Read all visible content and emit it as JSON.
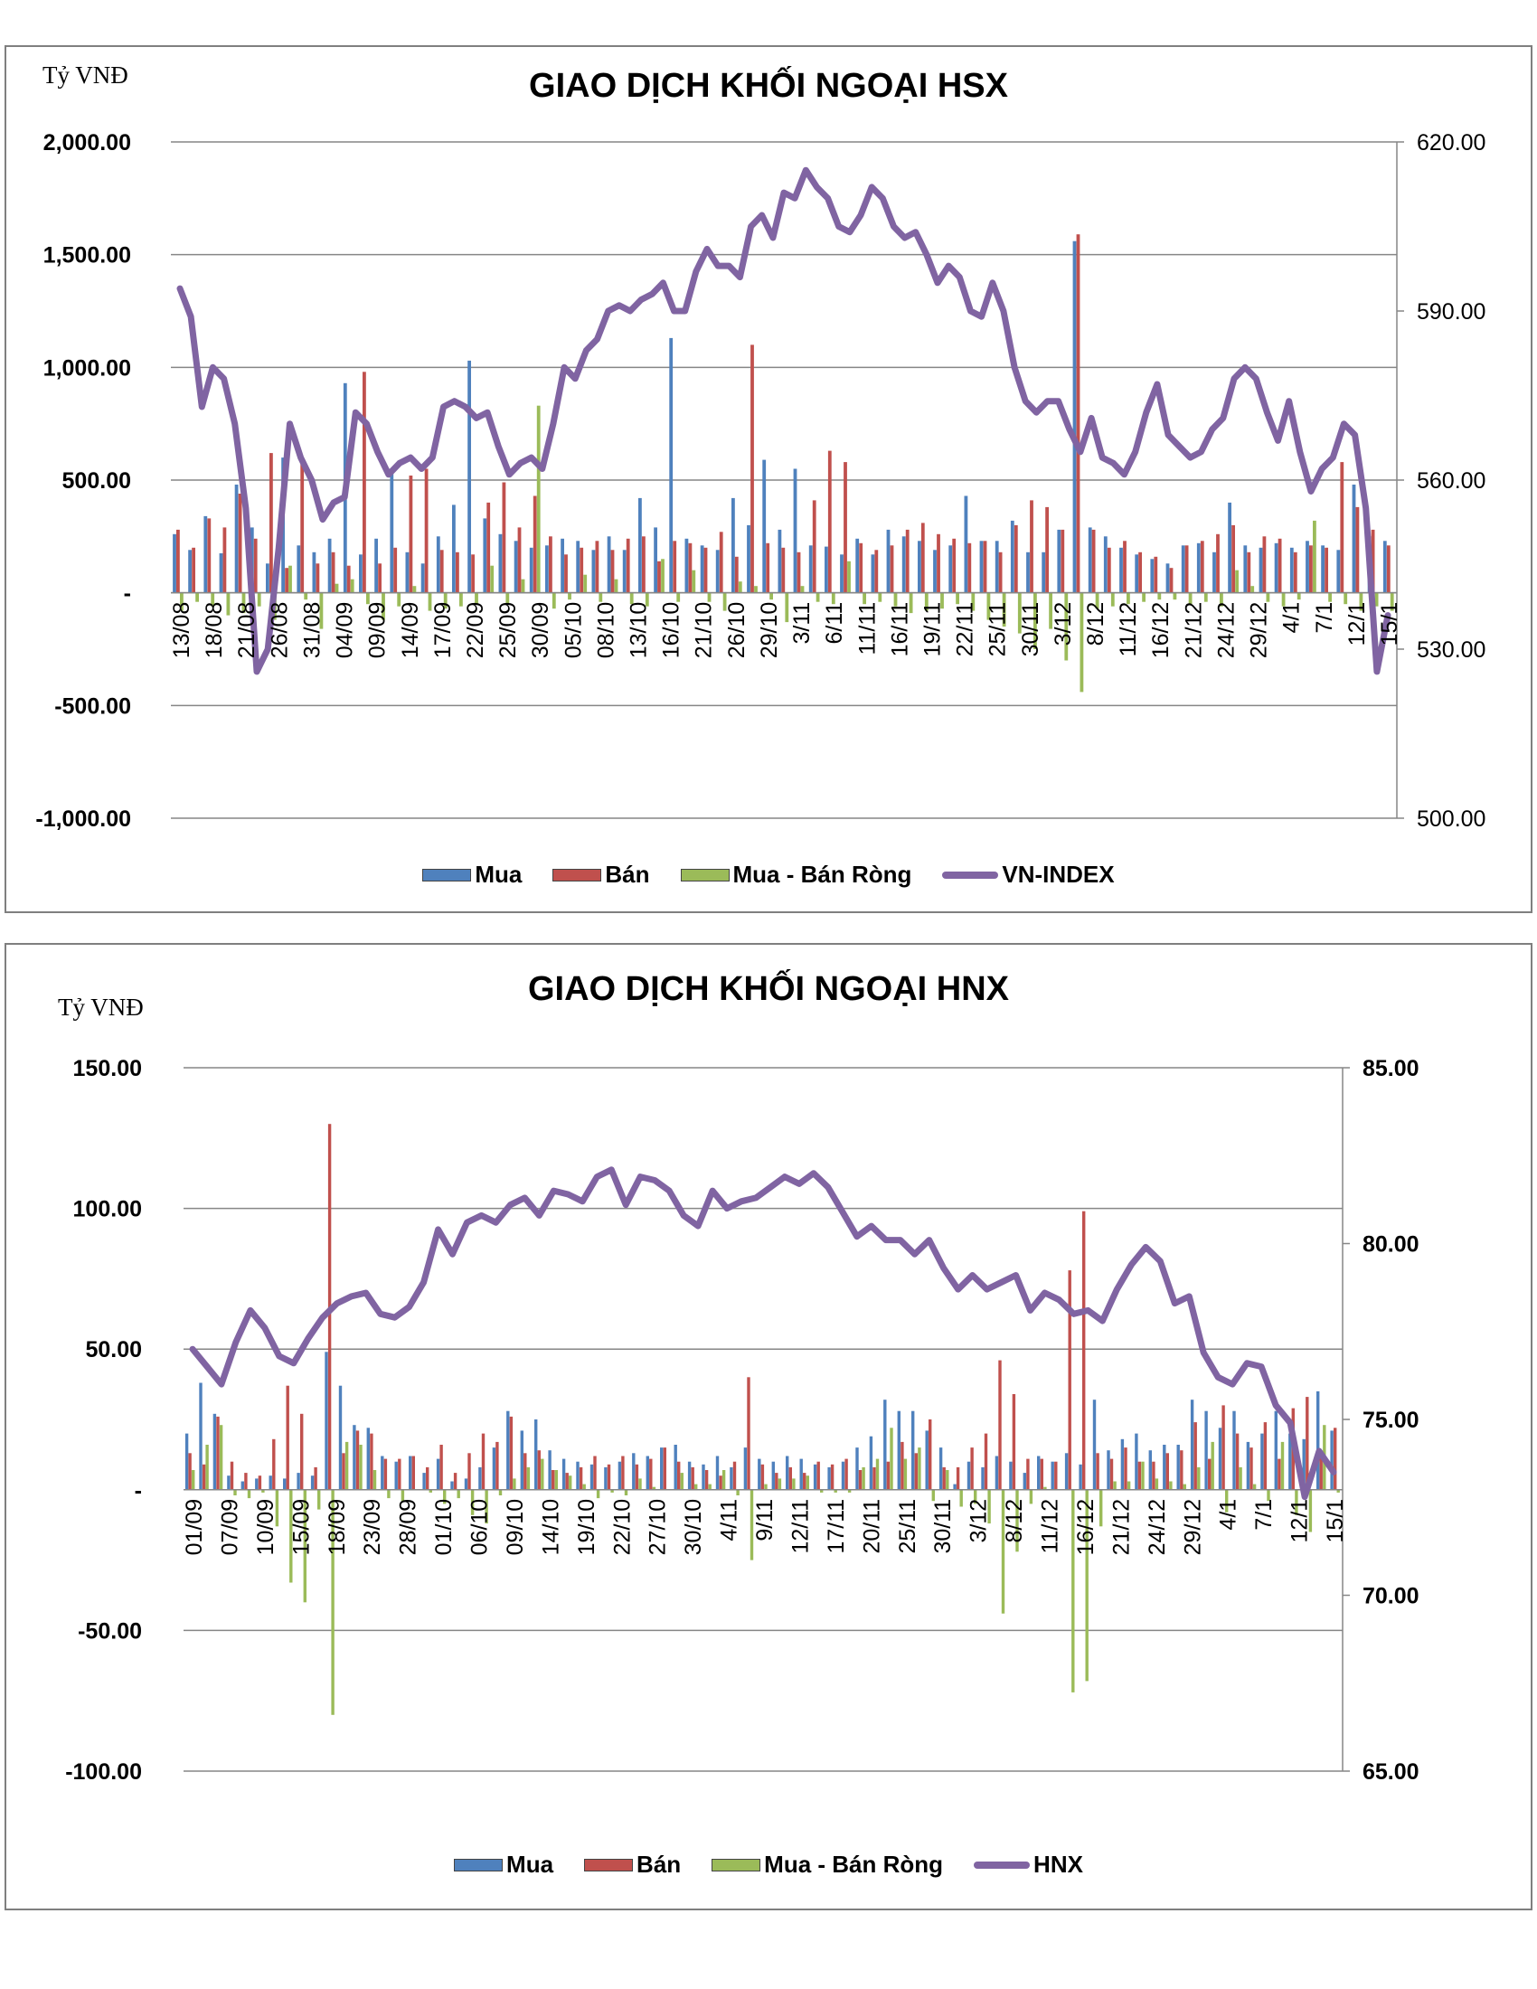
{
  "charts": [
    {
      "unit_label": "Tỷ VNĐ",
      "title": "GIAO DỊCH KHỐI NGOẠI HSX",
      "legend": [
        "Mua",
        "Bán",
        "Mua - Bán Ròng",
        "VN-INDEX"
      ]
    },
    {
      "unit_label": "Tỷ VNĐ",
      "title": "GIAO DỊCH KHỐI NGOẠI HNX",
      "legend": [
        "Mua",
        "Bán",
        "Mua - Bán Ròng",
        "HNX"
      ]
    }
  ],
  "colors": {
    "mua": "#4f81bd",
    "ban": "#c0504d",
    "rong": "#9bbb59",
    "index": "#8064a2"
  },
  "chart_data": [
    {
      "type": "bar",
      "title": "GIAO DỊCH KHỐI NGOẠI HSX",
      "ylabel": "Tỷ VNĐ",
      "ylim": [
        -1000,
        2000
      ],
      "y_ticks": [
        "2,000.00",
        "1,500.00",
        "1,000.00",
        "500.00",
        "-",
        "-500.00",
        "-1,000.00"
      ],
      "y2lim": [
        500,
        620
      ],
      "y2_ticks": [
        "620.00",
        "590.00",
        "560.00",
        "530.00",
        "500.00"
      ],
      "x_tick_labels": [
        "13/08",
        "18/08",
        "21/08",
        "26/08",
        "31/08",
        "04/09",
        "09/09",
        "14/09",
        "17/09",
        "22/09",
        "25/09",
        "30/09",
        "05/10",
        "08/10",
        "13/10",
        "16/10",
        "21/10",
        "26/10",
        "29/10",
        "3/11",
        "6/11",
        "11/11",
        "16/11",
        "19/11",
        "22/11",
        "25/11",
        "30/11",
        "3/12",
        "8/12",
        "11/12",
        "16/12",
        "21/12",
        "24/12",
        "29/12",
        "4/1",
        "7/1",
        "12/1",
        "15/1"
      ],
      "grid": true,
      "legend_position": "bottom",
      "series": [
        {
          "name": "Mua",
          "type": "bar",
          "values": [
            260,
            190,
            340,
            175,
            480,
            290,
            130,
            600,
            210,
            180,
            240,
            930,
            170,
            240,
            540,
            180,
            130,
            250,
            390,
            1030,
            330,
            260,
            230,
            200,
            210,
            240,
            230,
            190,
            250,
            190,
            420,
            290,
            1130,
            240,
            210,
            190,
            420,
            300,
            590,
            280,
            550,
            210,
            205,
            170,
            240,
            170,
            280,
            250,
            230,
            190,
            210,
            430,
            230,
            230,
            320,
            180,
            180,
            280,
            1560,
            290,
            250,
            200,
            170,
            150,
            130,
            210,
            220,
            180,
            400,
            210,
            200,
            220,
            200,
            230,
            210,
            190,
            480,
            250,
            230
          ]
        },
        {
          "name": "Bán",
          "type": "bar",
          "values": [
            280,
            200,
            330,
            290,
            440,
            240,
            620,
            110,
            590,
            130,
            180,
            120,
            980,
            130,
            200,
            520,
            550,
            190,
            180,
            170,
            400,
            490,
            290,
            430,
            250,
            170,
            200,
            230,
            190,
            240,
            250,
            140,
            230,
            220,
            200,
            270,
            160,
            1100,
            220,
            200,
            180,
            410,
            630,
            580,
            220,
            190,
            210,
            280,
            310,
            260,
            240,
            220,
            230,
            180,
            300,
            410,
            380,
            280,
            1590,
            280,
            200,
            230,
            180,
            160,
            110,
            210,
            230,
            260,
            300,
            180,
            250,
            240,
            180,
            210,
            200,
            580,
            380,
            280,
            210
          ]
        },
        {
          "name": "Mua - Bán Ròng",
          "type": "bar",
          "values": [
            -80,
            -40,
            -60,
            -100,
            -90,
            -60,
            -120,
            120,
            -30,
            -160,
            40,
            60,
            -50,
            -120,
            -60,
            30,
            -80,
            -70,
            -60,
            -50,
            120,
            -50,
            60,
            830,
            -70,
            -30,
            80,
            -40,
            60,
            -50,
            -60,
            150,
            -40,
            100,
            -40,
            -80,
            50,
            30,
            -30,
            -130,
            30,
            -40,
            -50,
            140,
            -50,
            -40,
            -60,
            -90,
            -80,
            -70,
            -50,
            -80,
            -120,
            -150,
            -180,
            -250,
            -160,
            -300,
            -440,
            -70,
            -60,
            -50,
            -40,
            -30,
            -30,
            -50,
            -40,
            -60,
            100,
            30,
            -40,
            -60,
            -30,
            320,
            -40,
            -50,
            -80,
            -60,
            -80
          ]
        },
        {
          "name": "VN-INDEX",
          "type": "line",
          "axis": "secondary",
          "values": [
            594,
            589,
            573,
            580,
            578,
            570,
            555,
            526,
            530,
            548,
            570,
            564,
            560,
            553,
            556,
            557,
            572,
            570,
            565,
            561,
            563,
            564,
            562,
            564,
            573,
            574,
            573,
            571,
            572,
            566,
            561,
            563,
            564,
            562,
            570,
            580,
            578,
            583,
            585,
            590,
            591,
            590,
            592,
            593,
            595,
            590,
            590,
            597,
            601,
            598,
            598,
            596,
            605,
            607,
            603,
            611,
            610,
            615,
            612,
            610,
            605,
            604,
            607,
            612,
            610,
            605,
            603,
            604,
            600,
            595,
            598,
            596,
            590,
            589,
            595,
            590,
            580,
            574,
            572,
            574,
            574,
            569,
            565,
            571,
            564,
            563,
            561,
            565,
            572,
            577,
            568,
            566,
            564,
            565,
            569,
            571,
            578,
            580,
            578,
            572,
            567,
            574,
            565,
            558,
            562,
            564,
            570,
            568,
            555,
            526,
            536
          ]
        }
      ]
    },
    {
      "type": "bar",
      "title": "GIAO DỊCH KHỐI NGOẠI HNX",
      "ylabel": "Tỷ VNĐ",
      "ylim": [
        -100,
        150
      ],
      "y_ticks": [
        "150.00",
        "100.00",
        "50.00",
        "-",
        "-50.00",
        "-100.00"
      ],
      "y2lim": [
        65,
        85
      ],
      "y2_ticks": [
        "85.00",
        "80.00",
        "75.00",
        "70.00",
        "65.00"
      ],
      "x_tick_labels": [
        "01/09",
        "07/09",
        "10/09",
        "15/09",
        "18/09",
        "23/09",
        "28/09",
        "01/10",
        "06/10",
        "09/10",
        "14/10",
        "19/10",
        "22/10",
        "27/10",
        "30/10",
        "4/11",
        "9/11",
        "12/11",
        "17/11",
        "20/11",
        "25/11",
        "30/11",
        "3/12",
        "8/12",
        "11/12",
        "16/12",
        "21/12",
        "24/12",
        "29/12",
        "4/1",
        "7/1",
        "12/1",
        "15/1"
      ],
      "grid": true,
      "legend_position": "bottom",
      "series": [
        {
          "name": "Mua",
          "type": "bar",
          "values": [
            20,
            38,
            27,
            5,
            3,
            4,
            5,
            4,
            6,
            5,
            49,
            37,
            23,
            22,
            12,
            10,
            12,
            6,
            11,
            3,
            4,
            8,
            15,
            28,
            21,
            25,
            14,
            11,
            10,
            9,
            8,
            10,
            13,
            12,
            15,
            16,
            10,
            9,
            12,
            8,
            15,
            11,
            10,
            12,
            11,
            9,
            8,
            10,
            15,
            19,
            32,
            28,
            28,
            21,
            15,
            2,
            10,
            8,
            12,
            10,
            6,
            12,
            10,
            13,
            9,
            32,
            14,
            18,
            20,
            14,
            16,
            16,
            32,
            28,
            22,
            28,
            17,
            20,
            28,
            20,
            18,
            35,
            21
          ]
        },
        {
          "name": "Bán",
          "type": "bar",
          "values": [
            13,
            9,
            26,
            10,
            6,
            5,
            18,
            37,
            27,
            8,
            130,
            13,
            21,
            20,
            11,
            11,
            12,
            8,
            16,
            6,
            13,
            20,
            17,
            26,
            13,
            14,
            7,
            6,
            8,
            12,
            9,
            12,
            9,
            11,
            15,
            10,
            8,
            7,
            5,
            10,
            40,
            9,
            6,
            8,
            6,
            10,
            9,
            11,
            7,
            8,
            10,
            17,
            13,
            25,
            8,
            8,
            15,
            20,
            46,
            34,
            11,
            11,
            10,
            78,
            99,
            13,
            11,
            15,
            10,
            10,
            13,
            14,
            24,
            11,
            30,
            20,
            15,
            24,
            11,
            29,
            33,
            12,
            22
          ]
        },
        {
          "name": "Mua - Bán Ròng",
          "type": "bar",
          "values": [
            7,
            16,
            23,
            -2,
            -3,
            -1,
            -13,
            -33,
            -40,
            -7,
            -80,
            17,
            16,
            7,
            -3,
            -4,
            0,
            -1,
            -5,
            -3,
            -9,
            -12,
            -2,
            4,
            8,
            11,
            7,
            5,
            2,
            -3,
            -1,
            -2,
            4,
            1,
            0,
            6,
            2,
            2,
            7,
            -2,
            -25,
            2,
            4,
            4,
            5,
            -1,
            -1,
            -1,
            8,
            11,
            22,
            11,
            15,
            -4,
            7,
            -6,
            -5,
            -12,
            -44,
            -22,
            -5,
            1,
            0,
            -72,
            -68,
            -13,
            3,
            3,
            10,
            4,
            3,
            2,
            8,
            17,
            -8,
            8,
            2,
            -4,
            17,
            -9,
            -15,
            23,
            -1
          ]
        },
        {
          "name": "HNX",
          "type": "line",
          "axis": "secondary",
          "values": [
            77.0,
            76.5,
            76.0,
            77.2,
            78.1,
            77.6,
            76.8,
            76.6,
            77.3,
            77.9,
            78.3,
            78.5,
            78.6,
            78.0,
            77.9,
            78.2,
            78.9,
            80.4,
            79.7,
            80.6,
            80.8,
            80.6,
            81.1,
            81.3,
            80.8,
            81.5,
            81.4,
            81.2,
            81.9,
            82.1,
            81.1,
            81.9,
            81.8,
            81.5,
            80.8,
            80.5,
            81.5,
            81.0,
            81.2,
            81.3,
            81.6,
            81.9,
            81.7,
            82.0,
            81.6,
            80.9,
            80.2,
            80.5,
            80.1,
            80.1,
            79.7,
            80.1,
            79.3,
            78.7,
            79.1,
            78.7,
            78.9,
            79.1,
            78.1,
            78.6,
            78.4,
            78.0,
            78.1,
            77.8,
            78.7,
            79.4,
            79.9,
            79.5,
            78.3,
            78.5,
            76.9,
            76.2,
            76.0,
            76.6,
            76.5,
            75.4,
            74.9,
            72.8,
            74.1,
            73.5
          ]
        }
      ]
    }
  ]
}
